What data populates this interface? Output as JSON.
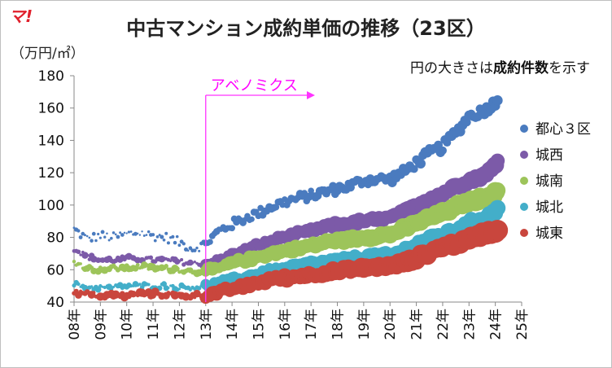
{
  "header": {
    "logo": "マ!",
    "title": "中古マンション成約単価の推移（23区）",
    "unit": "（万円/㎡）",
    "note_prefix": "円の大きさは",
    "note_bold": "成約件数",
    "note_suffix": "を示す"
  },
  "colors": {
    "都心3区": "#4a7bbf",
    "城西": "#7c5aa8",
    "城南": "#9dc45a",
    "城北": "#43aec9",
    "城東": "#c9463d",
    "annotation": "#ff00ff"
  },
  "chart_data": {
    "type": "scatter",
    "title": "中古マンション成約単価の推移（23区）",
    "ylabel": "（万円/㎡）",
    "ylim": [
      40,
      180
    ],
    "yticks": [
      40,
      60,
      80,
      100,
      120,
      140,
      160,
      180
    ],
    "xlim": [
      2008,
      2025
    ],
    "xtick_labels": [
      "08年",
      "09年",
      "10年",
      "11年",
      "12年",
      "13年",
      "14年",
      "15年",
      "16年",
      "17年",
      "18年",
      "19年",
      "20年",
      "21年",
      "22年",
      "23年",
      "24年",
      "25年"
    ],
    "annotation": {
      "label": "アベノミクス",
      "x": 2013.0
    },
    "size_encoding": "成約件数",
    "series": [
      {
        "name": "都心３区",
        "color": "#4a7bbf",
        "keypoints": [
          [
            2008.0,
            85
          ],
          [
            2008.5,
            79
          ],
          [
            2009.0,
            81
          ],
          [
            2009.5,
            80
          ],
          [
            2010.0,
            82
          ],
          [
            2010.5,
            83
          ],
          [
            2011.0,
            81
          ],
          [
            2011.5,
            80
          ],
          [
            2012.0,
            77
          ],
          [
            2012.5,
            73
          ],
          [
            2013.0,
            76
          ],
          [
            2013.5,
            84
          ],
          [
            2014.0,
            88
          ],
          [
            2014.5,
            92
          ],
          [
            2015.0,
            95
          ],
          [
            2015.5,
            99
          ],
          [
            2016.0,
            102
          ],
          [
            2016.5,
            104
          ],
          [
            2017.0,
            106
          ],
          [
            2017.5,
            108
          ],
          [
            2018.0,
            110
          ],
          [
            2018.5,
            112
          ],
          [
            2019.0,
            115
          ],
          [
            2019.5,
            116
          ],
          [
            2020.0,
            116
          ],
          [
            2020.5,
            120
          ],
          [
            2021.0,
            126
          ],
          [
            2021.5,
            132
          ],
          [
            2022.0,
            136
          ],
          [
            2022.5,
            145
          ],
          [
            2023.0,
            155
          ],
          [
            2023.5,
            158
          ],
          [
            2024.0,
            163
          ],
          [
            2024.1,
            167
          ]
        ]
      },
      {
        "name": "城西",
        "color": "#7c5aa8",
        "keypoints": [
          [
            2008.0,
            73
          ],
          [
            2008.5,
            68
          ],
          [
            2009.0,
            66
          ],
          [
            2009.5,
            66
          ],
          [
            2010.0,
            67
          ],
          [
            2010.5,
            67
          ],
          [
            2011.0,
            66
          ],
          [
            2011.5,
            66
          ],
          [
            2012.0,
            65
          ],
          [
            2012.5,
            64
          ],
          [
            2013.0,
            63
          ],
          [
            2013.5,
            66
          ],
          [
            2014.0,
            69
          ],
          [
            2014.5,
            72
          ],
          [
            2015.0,
            75
          ],
          [
            2015.5,
            78
          ],
          [
            2016.0,
            80
          ],
          [
            2016.5,
            82
          ],
          [
            2017.0,
            84
          ],
          [
            2017.5,
            86
          ],
          [
            2018.0,
            88
          ],
          [
            2018.5,
            89
          ],
          [
            2019.0,
            90
          ],
          [
            2019.5,
            91
          ],
          [
            2020.0,
            92
          ],
          [
            2020.5,
            95
          ],
          [
            2021.0,
            100
          ],
          [
            2021.5,
            104
          ],
          [
            2022.0,
            107
          ],
          [
            2022.5,
            112
          ],
          [
            2023.0,
            115
          ],
          [
            2023.5,
            118
          ],
          [
            2024.0,
            124
          ],
          [
            2024.1,
            128
          ]
        ]
      },
      {
        "name": "城南",
        "color": "#9dc45a",
        "keypoints": [
          [
            2008.0,
            65
          ],
          [
            2008.5,
            61
          ],
          [
            2009.0,
            60
          ],
          [
            2009.5,
            61
          ],
          [
            2010.0,
            61
          ],
          [
            2010.5,
            62
          ],
          [
            2011.0,
            61
          ],
          [
            2011.5,
            61
          ],
          [
            2012.0,
            60
          ],
          [
            2012.5,
            59
          ],
          [
            2013.0,
            59
          ],
          [
            2013.5,
            61
          ],
          [
            2014.0,
            64
          ],
          [
            2014.5,
            66
          ],
          [
            2015.0,
            68
          ],
          [
            2015.5,
            70
          ],
          [
            2016.0,
            72
          ],
          [
            2016.5,
            73
          ],
          [
            2017.0,
            75
          ],
          [
            2017.5,
            77
          ],
          [
            2018.0,
            78
          ],
          [
            2018.5,
            79
          ],
          [
            2019.0,
            80
          ],
          [
            2019.5,
            81
          ],
          [
            2020.0,
            82
          ],
          [
            2020.5,
            85
          ],
          [
            2021.0,
            89
          ],
          [
            2021.5,
            92
          ],
          [
            2022.0,
            95
          ],
          [
            2022.5,
            99
          ],
          [
            2023.0,
            102
          ],
          [
            2023.5,
            104
          ],
          [
            2024.0,
            107
          ],
          [
            2024.1,
            109
          ]
        ]
      },
      {
        "name": "城北",
        "color": "#43aec9",
        "keypoints": [
          [
            2008.0,
            51
          ],
          [
            2008.5,
            49
          ],
          [
            2009.0,
            49
          ],
          [
            2009.5,
            49
          ],
          [
            2010.0,
            50
          ],
          [
            2010.5,
            50
          ],
          [
            2011.0,
            50
          ],
          [
            2011.5,
            50
          ],
          [
            2012.0,
            49
          ],
          [
            2012.5,
            49
          ],
          [
            2013.0,
            50
          ],
          [
            2013.5,
            52
          ],
          [
            2014.0,
            54
          ],
          [
            2014.5,
            56
          ],
          [
            2015.0,
            58
          ],
          [
            2015.5,
            60
          ],
          [
            2016.0,
            61
          ],
          [
            2016.5,
            63
          ],
          [
            2017.0,
            64
          ],
          [
            2017.5,
            65
          ],
          [
            2018.0,
            66
          ],
          [
            2018.5,
            67
          ],
          [
            2019.0,
            68
          ],
          [
            2019.5,
            69
          ],
          [
            2020.0,
            69
          ],
          [
            2020.5,
            72
          ],
          [
            2021.0,
            76
          ],
          [
            2021.5,
            80
          ],
          [
            2022.0,
            82
          ],
          [
            2022.5,
            85
          ],
          [
            2023.0,
            89
          ],
          [
            2023.5,
            92
          ],
          [
            2024.0,
            96
          ],
          [
            2024.1,
            100
          ]
        ]
      },
      {
        "name": "城東",
        "color": "#c9463d",
        "keypoints": [
          [
            2008.0,
            46
          ],
          [
            2008.5,
            45
          ],
          [
            2009.0,
            44
          ],
          [
            2009.5,
            44
          ],
          [
            2010.0,
            44
          ],
          [
            2010.5,
            45
          ],
          [
            2011.0,
            45
          ],
          [
            2011.5,
            45
          ],
          [
            2012.0,
            44
          ],
          [
            2012.5,
            44
          ],
          [
            2013.0,
            44
          ],
          [
            2013.5,
            46
          ],
          [
            2014.0,
            48
          ],
          [
            2014.5,
            50
          ],
          [
            2015.0,
            52
          ],
          [
            2015.5,
            54
          ],
          [
            2016.0,
            55
          ],
          [
            2016.5,
            56
          ],
          [
            2017.0,
            57
          ],
          [
            2017.5,
            58
          ],
          [
            2018.0,
            59
          ],
          [
            2018.5,
            60
          ],
          [
            2019.0,
            61
          ],
          [
            2019.5,
            62
          ],
          [
            2020.0,
            62
          ],
          [
            2020.5,
            64
          ],
          [
            2021.0,
            67
          ],
          [
            2021.5,
            71
          ],
          [
            2022.0,
            74
          ],
          [
            2022.5,
            76
          ],
          [
            2023.0,
            79
          ],
          [
            2023.5,
            82
          ],
          [
            2024.0,
            84
          ],
          [
            2024.1,
            86
          ]
        ]
      }
    ]
  }
}
